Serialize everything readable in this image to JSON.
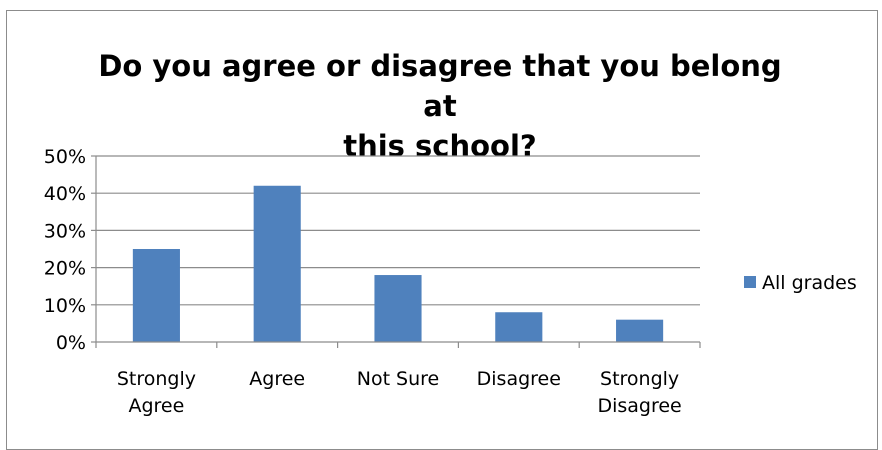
{
  "chart_data": {
    "type": "bar",
    "title_lines": [
      "Do you agree or disagree that you belong at",
      "this school?"
    ],
    "categories": [
      [
        "Strongly",
        "Agree"
      ],
      [
        "Agree"
      ],
      [
        "Not Sure"
      ],
      [
        "Disagree"
      ],
      [
        "Strongly",
        "Disagree"
      ]
    ],
    "series": [
      {
        "name": "All grades",
        "values": [
          25,
          42,
          18,
          8,
          6
        ],
        "color": "#4f81bd"
      }
    ],
    "y_ticks": [
      "0%",
      "10%",
      "20%",
      "30%",
      "40%",
      "50%"
    ],
    "ylim": [
      0,
      50
    ],
    "grid": true,
    "legend": "right"
  }
}
